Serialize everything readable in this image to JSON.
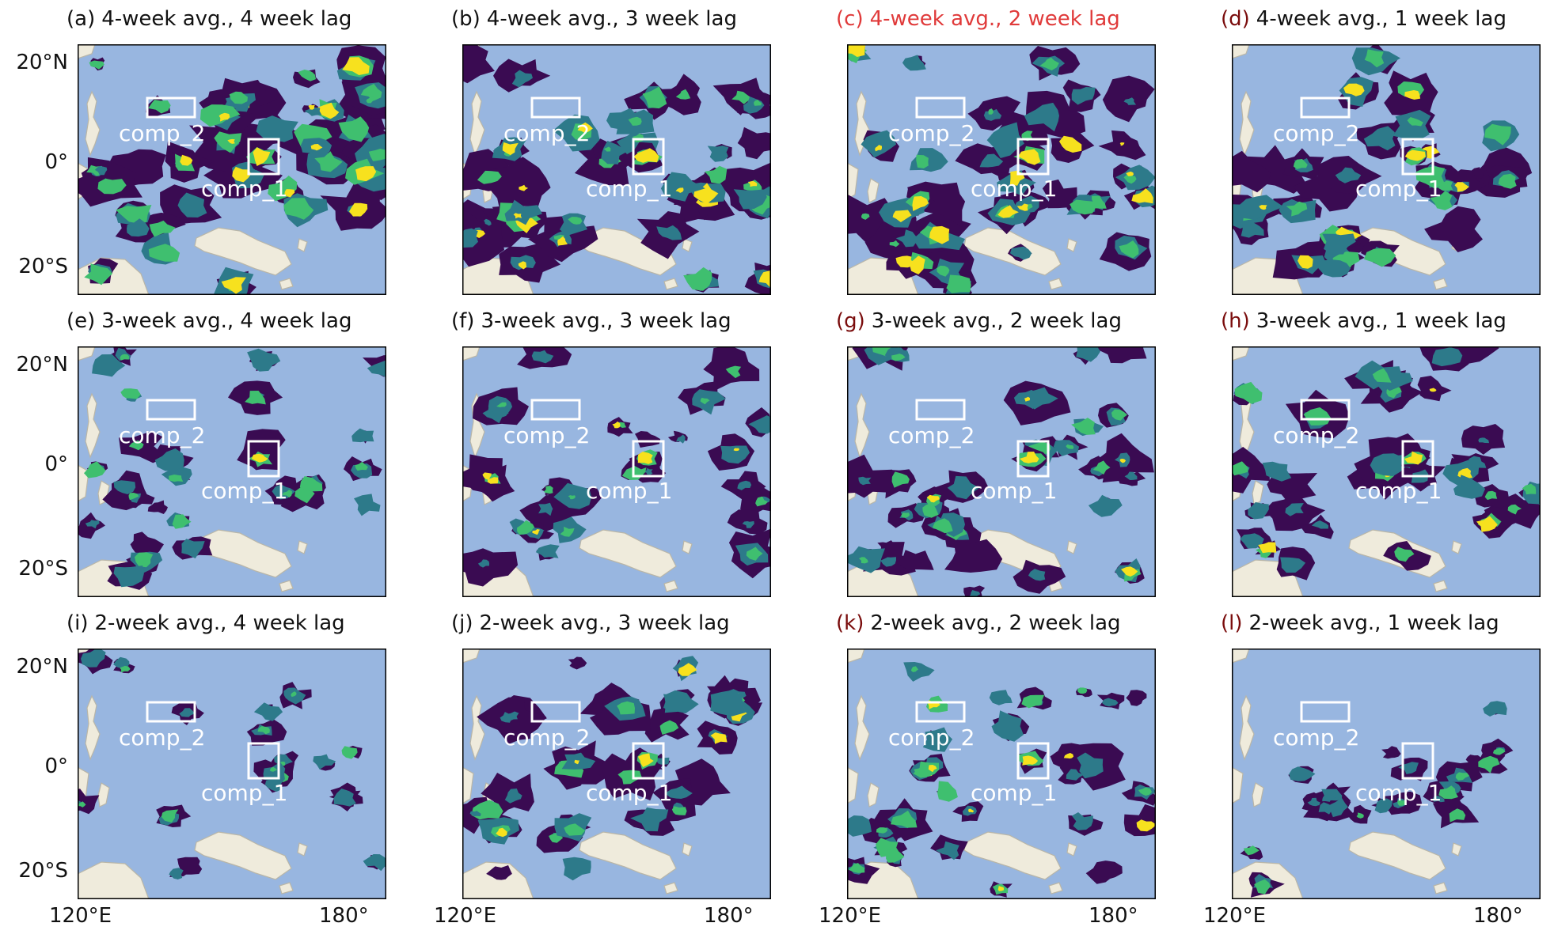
{
  "colors": {
    "ocean": "#98b6e0",
    "land": "#efebdc",
    "coast": "#b9b6a8",
    "low": "#3a0b52",
    "mid": "#2d7a8a",
    "high": "#3fbf6f",
    "peak": "#f7e11e",
    "box": "#ffffff",
    "title_default": "#111111",
    "title_highlight": "#e03a3a",
    "label_dark_red": "#7a0c0c"
  },
  "axes": {
    "lat_ticks": [
      "20°N",
      "0°",
      "20°S"
    ],
    "lon_ticks": [
      "120°E",
      "180°"
    ]
  },
  "boxes": {
    "comp_1": "comp_1",
    "comp_2": "comp_2"
  },
  "panels": [
    {
      "label": "(a)",
      "text": "4-week avg., 4 week lag",
      "style": "default",
      "intensity": 0.95
    },
    {
      "label": "(b)",
      "text": "4-week avg., 3 week lag",
      "style": "default",
      "intensity": 0.9
    },
    {
      "label": "(c)",
      "text": "4-week avg., 2 week lag",
      "style": "highlight",
      "intensity": 0.8
    },
    {
      "label": "(d)",
      "text": "4-week avg., 1 week lag",
      "style": "darklabel",
      "intensity": 0.7
    },
    {
      "label": "(e)",
      "text": "3-week avg., 4 week lag",
      "style": "default",
      "intensity": 0.45
    },
    {
      "label": "(f)",
      "text": "3-week avg., 3 week lag",
      "style": "default",
      "intensity": 0.55
    },
    {
      "label": "(g)",
      "text": "3-week avg., 2 week lag",
      "style": "darklabel",
      "intensity": 0.65
    },
    {
      "label": "(h)",
      "text": "3-week avg., 1 week lag",
      "style": "darklabel",
      "intensity": 0.6
    },
    {
      "label": "(i)",
      "text": "2-week avg., 4 week lag",
      "style": "default",
      "intensity": 0.2
    },
    {
      "label": "(j)",
      "text": "2-week avg., 3 week lag",
      "style": "default",
      "intensity": 0.6
    },
    {
      "label": "(k)",
      "text": "2-week avg., 2 week lag",
      "style": "darklabel",
      "intensity": 0.55
    },
    {
      "label": "(l)",
      "text": "2-week avg., 1 week lag",
      "style": "darklabel",
      "intensity": 0.25
    }
  ]
}
